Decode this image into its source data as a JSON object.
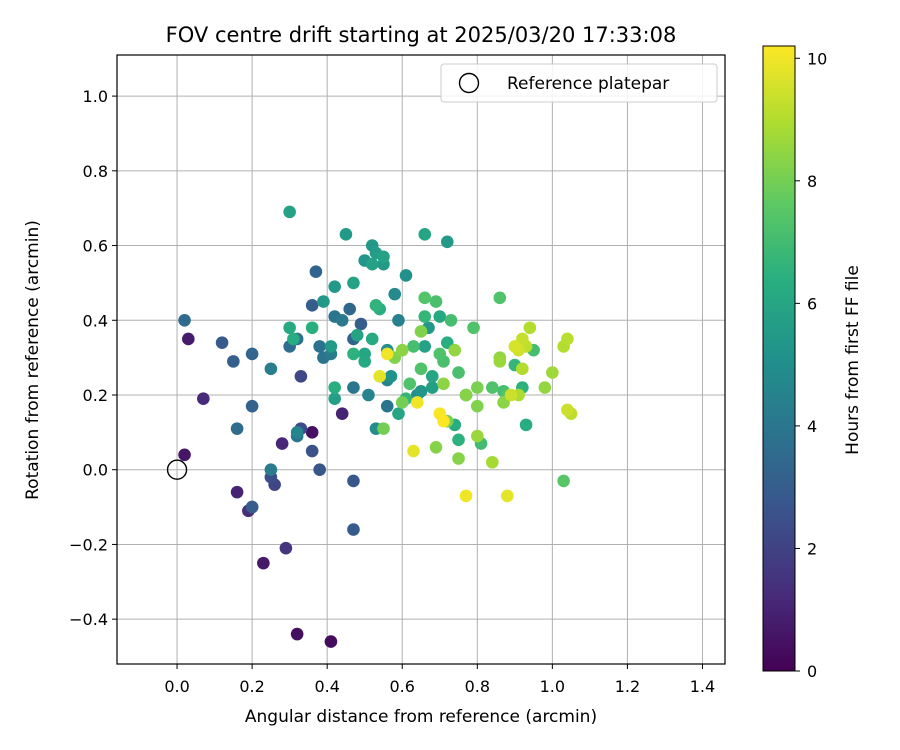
{
  "chart_data": {
    "type": "scatter",
    "title": "FOV centre drift starting at 2025/03/20 17:33:08",
    "xlabel": "Angular distance from reference (arcmin)",
    "ylabel": "Rotation from reference (arcmin)",
    "xlim": [
      -0.16,
      1.46
    ],
    "ylim": [
      -0.52,
      1.11
    ],
    "xticks": [
      0.0,
      0.2,
      0.4,
      0.6,
      0.8,
      1.0,
      1.2,
      1.4
    ],
    "xtick_labels": [
      "0.0",
      "0.2",
      "0.4",
      "0.6",
      "0.8",
      "1.0",
      "1.2",
      "1.4"
    ],
    "yticks": [
      -0.4,
      -0.2,
      0.0,
      0.2,
      0.4,
      0.6,
      0.8,
      1.0
    ],
    "ytick_labels": [
      "−0.4",
      "−0.2",
      "0.0",
      "0.2",
      "0.4",
      "0.6",
      "0.8",
      "1.0"
    ],
    "grid": true,
    "legend": {
      "position": "top-right",
      "entries": [
        "Reference platepar"
      ]
    },
    "reference_point": {
      "label": "Reference platepar",
      "x": 0.0,
      "y": 0.0,
      "marker": "open-circle"
    },
    "colorbar": {
      "label": "Hours from first FF file",
      "colormap": "viridis",
      "range": [
        0,
        10.2
      ],
      "ticks": [
        0,
        2,
        4,
        6,
        8,
        10
      ],
      "tick_labels": [
        "0",
        "2",
        "4",
        "6",
        "8",
        "10"
      ]
    },
    "points": [
      [
        0.02,
        0.04,
        0.6
      ],
      [
        0.03,
        0.35,
        0.8
      ],
      [
        0.07,
        0.19,
        1.2
      ],
      [
        0.16,
        -0.06,
        1.0
      ],
      [
        0.19,
        -0.11,
        1.3
      ],
      [
        0.2,
        -0.1,
        1.4
      ],
      [
        0.23,
        -0.25,
        0.7
      ],
      [
        0.28,
        0.07,
        1.1
      ],
      [
        0.29,
        -0.21,
        1.5
      ],
      [
        0.32,
        -0.44,
        0.4
      ],
      [
        0.41,
        -0.46,
        0.3
      ],
      [
        0.36,
        0.1,
        0.5
      ],
      [
        0.44,
        0.15,
        1.0
      ],
      [
        0.33,
        0.11,
        2.3
      ],
      [
        0.36,
        0.05,
        2.5
      ],
      [
        0.38,
        0.0,
        2.7
      ],
      [
        0.47,
        -0.03,
        2.8
      ],
      [
        0.47,
        -0.16,
        2.9
      ],
      [
        0.33,
        0.25,
        2.2
      ],
      [
        0.26,
        -0.04,
        2.1
      ],
      [
        0.25,
        -0.02,
        2.4
      ],
      [
        0.2,
        -0.1,
        3.0
      ],
      [
        0.12,
        0.34,
        2.9
      ],
      [
        0.15,
        0.29,
        3.1
      ],
      [
        0.2,
        0.31,
        3.3
      ],
      [
        0.2,
        0.17,
        3.2
      ],
      [
        0.16,
        0.11,
        3.6
      ],
      [
        0.02,
        0.4,
        3.5
      ],
      [
        0.36,
        0.44,
        3.0
      ],
      [
        0.37,
        0.53,
        3.3
      ],
      [
        0.46,
        0.43,
        3.4
      ],
      [
        0.47,
        0.35,
        3.2
      ],
      [
        0.49,
        0.39,
        3.0
      ],
      [
        0.3,
        0.33,
        3.6
      ],
      [
        0.32,
        0.35,
        3.8
      ],
      [
        0.32,
        0.09,
        3.9
      ],
      [
        0.25,
        0.27,
        4.3
      ],
      [
        0.25,
        0.0,
        4.2
      ],
      [
        0.32,
        0.1,
        4.6
      ],
      [
        0.38,
        0.33,
        3.8
      ],
      [
        0.39,
        0.3,
        3.9
      ],
      [
        0.41,
        0.31,
        4.2
      ],
      [
        0.42,
        0.41,
        3.9
      ],
      [
        0.44,
        0.4,
        4.1
      ],
      [
        0.47,
        0.22,
        4.0
      ],
      [
        0.51,
        0.2,
        4.5
      ],
      [
        0.53,
        0.11,
        5.0
      ],
      [
        0.56,
        0.17,
        3.9
      ],
      [
        0.58,
        0.47,
        4.8
      ],
      [
        0.59,
        0.4,
        4.4
      ],
      [
        0.61,
        0.52,
        5.1
      ],
      [
        0.64,
        0.2,
        4.9
      ],
      [
        0.65,
        0.21,
        5.3
      ],
      [
        0.56,
        0.32,
        4.9
      ],
      [
        0.57,
        0.25,
        5.2
      ],
      [
        0.56,
        0.24,
        4.6
      ],
      [
        0.39,
        0.45,
        5.4
      ],
      [
        0.41,
        0.33,
        5.5
      ],
      [
        0.42,
        0.22,
        6.4
      ],
      [
        0.42,
        0.19,
        5.7
      ],
      [
        0.42,
        0.49,
        5.4
      ],
      [
        0.45,
        0.63,
        5.5
      ],
      [
        0.47,
        0.5,
        5.8
      ],
      [
        0.5,
        0.56,
        5.3
      ],
      [
        0.52,
        0.6,
        5.4
      ],
      [
        0.52,
        0.55,
        5.8
      ],
      [
        0.53,
        0.58,
        5.6
      ],
      [
        0.55,
        0.57,
        5.9
      ],
      [
        0.55,
        0.55,
        5.5
      ],
      [
        0.54,
        0.43,
        6.4
      ],
      [
        0.53,
        0.44,
        6.6
      ],
      [
        0.52,
        0.35,
        6.2
      ],
      [
        0.5,
        0.31,
        6.0
      ],
      [
        0.5,
        0.29,
        6.1
      ],
      [
        0.48,
        0.36,
        5.9
      ],
      [
        0.47,
        0.31,
        6.5
      ],
      [
        0.3,
        0.38,
        6.2
      ],
      [
        0.3,
        0.69,
        5.8
      ],
      [
        0.36,
        0.38,
        6.4
      ],
      [
        0.31,
        0.35,
        6.3
      ],
      [
        0.66,
        0.63,
        6.0
      ],
      [
        0.72,
        0.61,
        5.5
      ],
      [
        0.67,
        0.38,
        5.4
      ],
      [
        0.66,
        0.33,
        5.8
      ],
      [
        0.66,
        0.41,
        6.7
      ],
      [
        0.68,
        0.25,
        6.0
      ],
      [
        0.7,
        0.41,
        6.1
      ],
      [
        0.72,
        0.34,
        6.4
      ],
      [
        0.68,
        0.22,
        5.7
      ],
      [
        0.74,
        0.12,
        6.3
      ],
      [
        0.75,
        0.08,
        6.5
      ],
      [
        0.77,
        0.2,
        6.4
      ],
      [
        0.59,
        0.15,
        6.0
      ],
      [
        0.61,
        0.19,
        6.7
      ],
      [
        0.62,
        0.23,
        7.3
      ],
      [
        0.63,
        0.33,
        7.1
      ],
      [
        0.65,
        0.27,
        7.3
      ],
      [
        0.66,
        0.46,
        7.4
      ],
      [
        0.69,
        0.45,
        7.2
      ],
      [
        0.7,
        0.31,
        7.3
      ],
      [
        0.71,
        0.29,
        7.2
      ],
      [
        0.73,
        0.4,
        7.1
      ],
      [
        0.75,
        0.26,
        7.2
      ],
      [
        0.79,
        0.38,
        7.3
      ],
      [
        0.81,
        0.07,
        7.0
      ],
      [
        0.84,
        0.22,
        7.3
      ],
      [
        0.86,
        0.46,
        7.3
      ],
      [
        0.87,
        0.21,
        7.1
      ],
      [
        0.88,
        0.2,
        7.4
      ],
      [
        0.9,
        0.28,
        6.7
      ],
      [
        0.92,
        0.22,
        6.5
      ],
      [
        0.93,
        0.12,
        6.3
      ],
      [
        0.95,
        0.32,
        7.1
      ],
      [
        1.03,
        -0.03,
        7.5
      ],
      [
        0.55,
        0.11,
        8.0
      ],
      [
        0.58,
        0.3,
        8.2
      ],
      [
        0.6,
        0.18,
        8.0
      ],
      [
        0.6,
        0.32,
        8.4
      ],
      [
        0.65,
        0.37,
        8.2
      ],
      [
        0.69,
        0.06,
        8.3
      ],
      [
        0.71,
        0.23,
        8.4
      ],
      [
        0.72,
        0.13,
        8.1
      ],
      [
        0.75,
        0.03,
        8.3
      ],
      [
        0.74,
        0.32,
        8.5
      ],
      [
        0.77,
        0.2,
        8.3
      ],
      [
        0.8,
        0.17,
        8.2
      ],
      [
        0.8,
        0.22,
        8.1
      ],
      [
        0.8,
        0.09,
        8.6
      ],
      [
        0.84,
        0.02,
        8.8
      ],
      [
        0.86,
        0.3,
        8.5
      ],
      [
        0.86,
        0.29,
        8.6
      ],
      [
        0.87,
        0.18,
        8.4
      ],
      [
        0.91,
        0.2,
        8.9
      ],
      [
        0.92,
        0.27,
        9.0
      ],
      [
        0.93,
        0.33,
        9.2
      ],
      [
        0.94,
        0.38,
        9.0
      ],
      [
        0.98,
        0.22,
        8.5
      ],
      [
        1.0,
        0.26,
        8.7
      ],
      [
        1.03,
        0.33,
        9.0
      ],
      [
        1.04,
        0.35,
        9.1
      ],
      [
        1.04,
        0.16,
        9.4
      ],
      [
        1.05,
        0.15,
        9.2
      ],
      [
        0.9,
        0.33,
        9.6
      ],
      [
        0.92,
        0.35,
        9.3
      ],
      [
        0.89,
        0.2,
        9.4
      ],
      [
        0.91,
        0.32,
        9.5
      ],
      [
        0.54,
        0.25,
        9.8
      ],
      [
        0.56,
        0.31,
        10.0
      ],
      [
        0.63,
        0.05,
        9.8
      ],
      [
        0.64,
        0.18,
        10.0
      ],
      [
        0.7,
        0.15,
        10.1
      ],
      [
        0.71,
        0.13,
        10.2
      ],
      [
        0.77,
        -0.07,
        10.0
      ],
      [
        0.88,
        -0.07,
        9.8
      ]
    ]
  }
}
